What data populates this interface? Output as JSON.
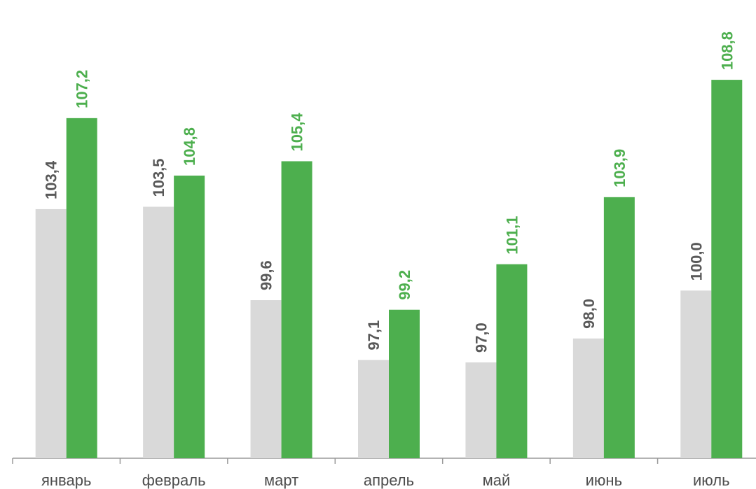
{
  "chart_data": {
    "type": "bar",
    "categories": [
      "январь",
      "февраль",
      "март",
      "апрель",
      "май",
      "июнь",
      "июль"
    ],
    "series": [
      {
        "values": [
          103.4,
          103.5,
          99.6,
          97.1,
          97.0,
          98.0,
          100.0
        ],
        "value_labels": [
          "103,4",
          "103,5",
          "99,6",
          "97,1",
          "97,0",
          "98,0",
          "100,0"
        ],
        "color": "#d9d9d9",
        "label_color": "#595959"
      },
      {
        "values": [
          107.2,
          104.8,
          105.4,
          99.2,
          101.1,
          103.9,
          108.8
        ],
        "value_labels": [
          "107,2",
          "104,8",
          "105,4",
          "99,2",
          "101,1",
          "103,9",
          "108,8"
        ],
        "color": "#4daf4e",
        "label_color": "#4daf4e"
      }
    ],
    "ylim": [
      93.0,
      110.0
    ],
    "grid": false,
    "legend": "none"
  }
}
